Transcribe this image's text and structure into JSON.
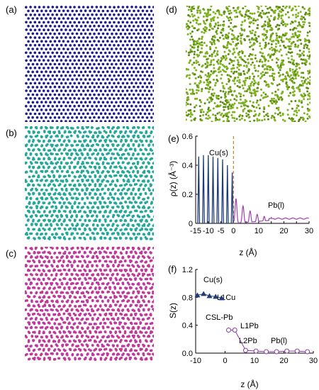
{
  "panel_labels": {
    "a": "(a)",
    "b": "(b)",
    "c": "(c)",
    "d": "(d)",
    "e": "(e)",
    "f": "(f)"
  },
  "snapshots": {
    "a": {
      "color": "#1b1a8f"
    },
    "b": {
      "color": "#23a89a"
    },
    "c": {
      "color": "#c0399a"
    },
    "d": {
      "color": "#7fb21f"
    }
  },
  "chart_data": [
    {
      "id": "e",
      "type": "line",
      "xlabel": "z (Å)",
      "ylabel": "ρ(z) (Å⁻³)",
      "xlim": [
        -15,
        30
      ],
      "ylim": [
        0,
        0.6
      ],
      "xticks": [
        "-15",
        "-10",
        "-5",
        "0",
        "5",
        "10",
        "15",
        "20",
        "25",
        "30"
      ],
      "yticks": [
        "0",
        "0.2",
        "0.4",
        "0.6"
      ],
      "divider_x": 0,
      "divider_color": "#c8802a",
      "series": [
        {
          "name": "Cu(s)",
          "color": "#1f3b78",
          "peaks_x": [
            -13.8,
            -11.9,
            -10.0,
            -8.1,
            -6.2,
            -4.3,
            -2.4,
            -0.5
          ],
          "peaks_y": [
            0.46,
            0.47,
            0.47,
            0.46,
            0.45,
            0.44,
            0.4,
            0.35
          ]
        },
        {
          "name": "Pb(l)",
          "color": "#a040b0",
          "peaks_x": [
            1.0,
            3.8,
            6.6,
            9.4,
            12.2,
            15.0
          ],
          "peaks_y": [
            0.17,
            0.12,
            0.085,
            0.062,
            0.048,
            0.04
          ],
          "plateau_y": 0.033
        }
      ],
      "annotations": [
        "Cu(s)",
        "Pb(l)"
      ]
    },
    {
      "id": "f",
      "type": "scatter",
      "xlabel": "z (Å)",
      "ylabel": "S(z)",
      "xlim": [
        -10,
        30
      ],
      "ylim": [
        0,
        1.2
      ],
      "xticks": [
        "-10",
        "0",
        "10",
        "20",
        "30"
      ],
      "yticks": [
        "0.0",
        "0.4",
        "0.8",
        "1.2"
      ],
      "series": [
        {
          "name": "Cu(s)",
          "color": "#1f3b78",
          "marker": "triangle",
          "x": [
            -9.4,
            -7.3,
            -5.3,
            -3.2,
            -1.2
          ],
          "y": [
            0.83,
            0.85,
            0.82,
            0.81,
            0.79
          ]
        },
        {
          "name": "Pb(l)",
          "color": "#8a3aa8",
          "marker": "circle",
          "x": [
            1.2,
            3.3,
            7.0,
            10.5,
            14.0,
            17.5,
            21.0,
            24.5,
            28.0
          ],
          "y": [
            0.33,
            0.33,
            0.04,
            0.03,
            0.02,
            0.02,
            0.03,
            0.03,
            0.02
          ]
        }
      ],
      "annotations": [
        "Cu(s)",
        "L1Cu",
        "CSL-Pb",
        "L1Pb",
        "L2Pb",
        "Pb(l)"
      ]
    }
  ]
}
